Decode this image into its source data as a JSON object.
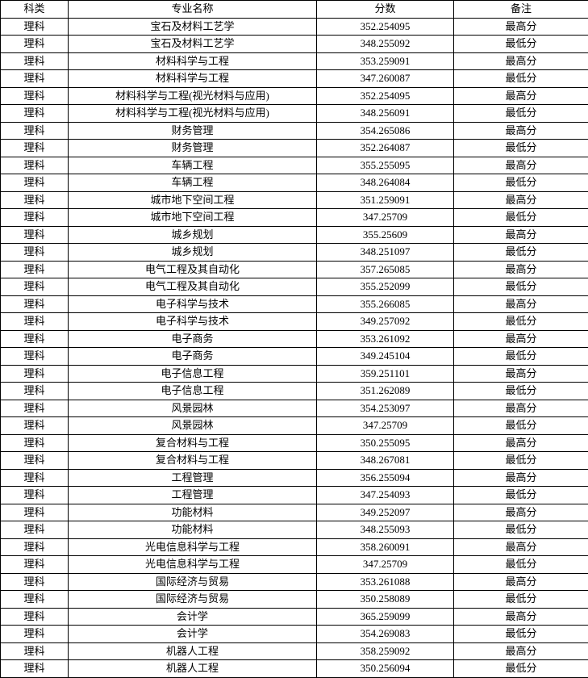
{
  "table": {
    "headers": [
      "科类",
      "专业名称",
      "分数",
      "备注"
    ],
    "rows": [
      [
        "理科",
        "宝石及材料工艺学",
        "352.254095",
        "最高分"
      ],
      [
        "理科",
        "宝石及材料工艺学",
        "348.255092",
        "最低分"
      ],
      [
        "理科",
        "材料科学与工程",
        "353.259091",
        "最高分"
      ],
      [
        "理科",
        "材料科学与工程",
        "347.260087",
        "最低分"
      ],
      [
        "理科",
        "材料科学与工程(视光材料与应用)",
        "352.254095",
        "最高分"
      ],
      [
        "理科",
        "材料科学与工程(视光材料与应用)",
        "348.256091",
        "最低分"
      ],
      [
        "理科",
        "财务管理",
        "354.265086",
        "最高分"
      ],
      [
        "理科",
        "财务管理",
        "352.264087",
        "最低分"
      ],
      [
        "理科",
        "车辆工程",
        "355.255095",
        "最高分"
      ],
      [
        "理科",
        "车辆工程",
        "348.264084",
        "最低分"
      ],
      [
        "理科",
        "城市地下空间工程",
        "351.259091",
        "最高分"
      ],
      [
        "理科",
        "城市地下空间工程",
        "347.25709",
        "最低分"
      ],
      [
        "理科",
        "城乡规划",
        "355.25609",
        "最高分"
      ],
      [
        "理科",
        "城乡规划",
        "348.251097",
        "最低分"
      ],
      [
        "理科",
        "电气工程及其自动化",
        "357.265085",
        "最高分"
      ],
      [
        "理科",
        "电气工程及其自动化",
        "355.252099",
        "最低分"
      ],
      [
        "理科",
        "电子科学与技术",
        "355.266085",
        "最高分"
      ],
      [
        "理科",
        "电子科学与技术",
        "349.257092",
        "最低分"
      ],
      [
        "理科",
        "电子商务",
        "353.261092",
        "最高分"
      ],
      [
        "理科",
        "电子商务",
        "349.245104",
        "最低分"
      ],
      [
        "理科",
        "电子信息工程",
        "359.251101",
        "最高分"
      ],
      [
        "理科",
        "电子信息工程",
        "351.262089",
        "最低分"
      ],
      [
        "理科",
        "风景园林",
        "354.253097",
        "最高分"
      ],
      [
        "理科",
        "风景园林",
        "347.25709",
        "最低分"
      ],
      [
        "理科",
        "复合材料与工程",
        "350.255095",
        "最高分"
      ],
      [
        "理科",
        "复合材料与工程",
        "348.267081",
        "最低分"
      ],
      [
        "理科",
        "工程管理",
        "356.255094",
        "最高分"
      ],
      [
        "理科",
        "工程管理",
        "347.254093",
        "最低分"
      ],
      [
        "理科",
        "功能材料",
        "349.252097",
        "最高分"
      ],
      [
        "理科",
        "功能材料",
        "348.255093",
        "最低分"
      ],
      [
        "理科",
        "光电信息科学与工程",
        "358.260091",
        "最高分"
      ],
      [
        "理科",
        "光电信息科学与工程",
        "347.25709",
        "最低分"
      ],
      [
        "理科",
        "国际经济与贸易",
        "353.261088",
        "最高分"
      ],
      [
        "理科",
        "国际经济与贸易",
        "350.258089",
        "最低分"
      ],
      [
        "理科",
        "会计学",
        "365.259099",
        "最高分"
      ],
      [
        "理科",
        "会计学",
        "354.269083",
        "最低分"
      ],
      [
        "理科",
        "机器人工程",
        "358.259092",
        "最高分"
      ],
      [
        "理科",
        "机器人工程",
        "350.256094",
        "最低分"
      ]
    ]
  }
}
